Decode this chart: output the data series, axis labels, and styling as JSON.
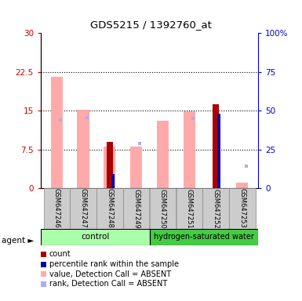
{
  "title": "GDS5215 / 1392760_at",
  "samples": [
    "GSM647246",
    "GSM647247",
    "GSM647248",
    "GSM647249",
    "GSM647250",
    "GSM647251",
    "GSM647252",
    "GSM647253"
  ],
  "left_ylim": [
    0,
    30
  ],
  "left_yticks": [
    0,
    7.5,
    15,
    22.5,
    30
  ],
  "right_ylim": [
    0,
    100
  ],
  "right_yticks": [
    0,
    25,
    50,
    75,
    100
  ],
  "left_ytick_labels": [
    "0",
    "7.5",
    "15",
    "22.5",
    "30"
  ],
  "right_ytick_labels": [
    "0",
    "25",
    "50",
    "75",
    "100%"
  ],
  "left_axis_color": "#cc0000",
  "right_axis_color": "#0000cc",
  "bars": [
    {
      "sample": "GSM647246",
      "value_absent": 21.5,
      "rank_absent": 13.5,
      "count": null,
      "pct_rank": null
    },
    {
      "sample": "GSM647247",
      "value_absent": 15.2,
      "rank_absent": 14.0,
      "count": null,
      "pct_rank": null
    },
    {
      "sample": "GSM647248",
      "value_absent": 8.0,
      "rank_absent": null,
      "count": 9.0,
      "pct_rank": 9.2
    },
    {
      "sample": "GSM647249",
      "value_absent": 8.0,
      "rank_absent": 9.0,
      "count": null,
      "pct_rank": null
    },
    {
      "sample": "GSM647250",
      "value_absent": 13.0,
      "rank_absent": null,
      "count": null,
      "pct_rank": null
    },
    {
      "sample": "GSM647251",
      "value_absent": 14.8,
      "rank_absent": 13.8,
      "count": null,
      "pct_rank": null
    },
    {
      "sample": "GSM647252",
      "value_absent": null,
      "rank_absent": null,
      "count": 16.2,
      "pct_rank": 48.0
    },
    {
      "sample": "GSM647253",
      "value_absent": 1.0,
      "rank_absent": 4.5,
      "count": null,
      "pct_rank": null
    }
  ],
  "colors": {
    "count": "#aa0000",
    "pct_rank": "#0000aa",
    "value_absent": "#ffaaaa",
    "rank_absent": "#aaaaff"
  },
  "legend": [
    {
      "color": "#aa0000",
      "label": "count"
    },
    {
      "color": "#0000aa",
      "label": "percentile rank within the sample"
    },
    {
      "color": "#ffaaaa",
      "label": "value, Detection Call = ABSENT"
    },
    {
      "color": "#aaaaff",
      "label": "rank, Detection Call = ABSENT"
    }
  ],
  "group1_label": "control",
  "group1_color": "#aaffaa",
  "group2_label": "hydrogen-saturated water",
  "group2_color": "#44cc44",
  "agent_label": "agent ►"
}
